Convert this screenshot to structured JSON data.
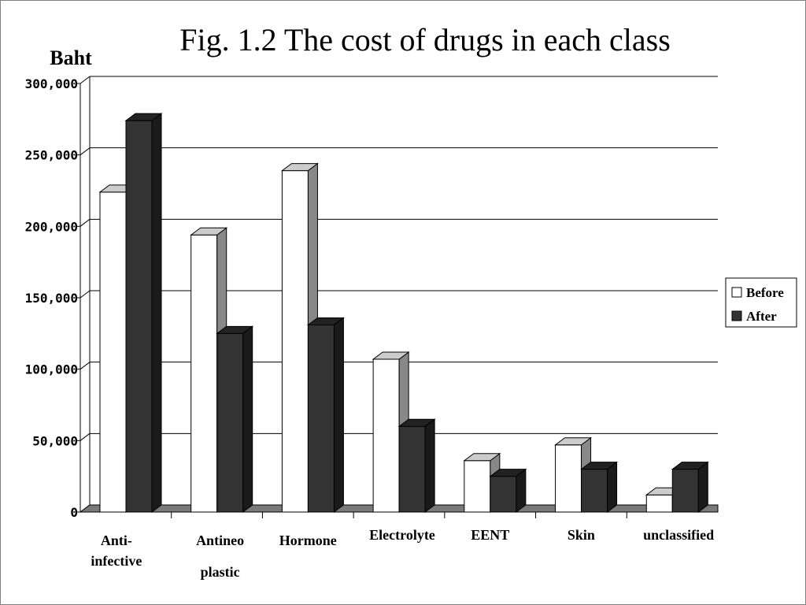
{
  "chart_data": {
    "type": "bar",
    "title": "Fig. 1.2  The cost of drugs in each class",
    "ylabel": "Baht",
    "xlabel": "",
    "ylim": [
      0,
      300000
    ],
    "yticks": [
      "0",
      "50,000",
      "100,000",
      "150,000",
      "200,000",
      "250,000",
      "300,000"
    ],
    "categories": [
      [
        "Anti-",
        "infective"
      ],
      [
        "Antineo",
        "plastic"
      ],
      [
        "Hormone"
      ],
      [
        "Electrolyte"
      ],
      [
        "EENT"
      ],
      [
        "Skin"
      ],
      [
        "unclassified"
      ]
    ],
    "series": [
      {
        "name": "Before",
        "values": [
          224000,
          194000,
          239000,
          107000,
          36000,
          47000,
          12000
        ],
        "color": "#ffffff"
      },
      {
        "name": "After",
        "values": [
          274000,
          125000,
          131000,
          60000,
          25000,
          30000,
          30000
        ],
        "color": "#333333"
      }
    ],
    "grid": true,
    "legend": "right"
  }
}
